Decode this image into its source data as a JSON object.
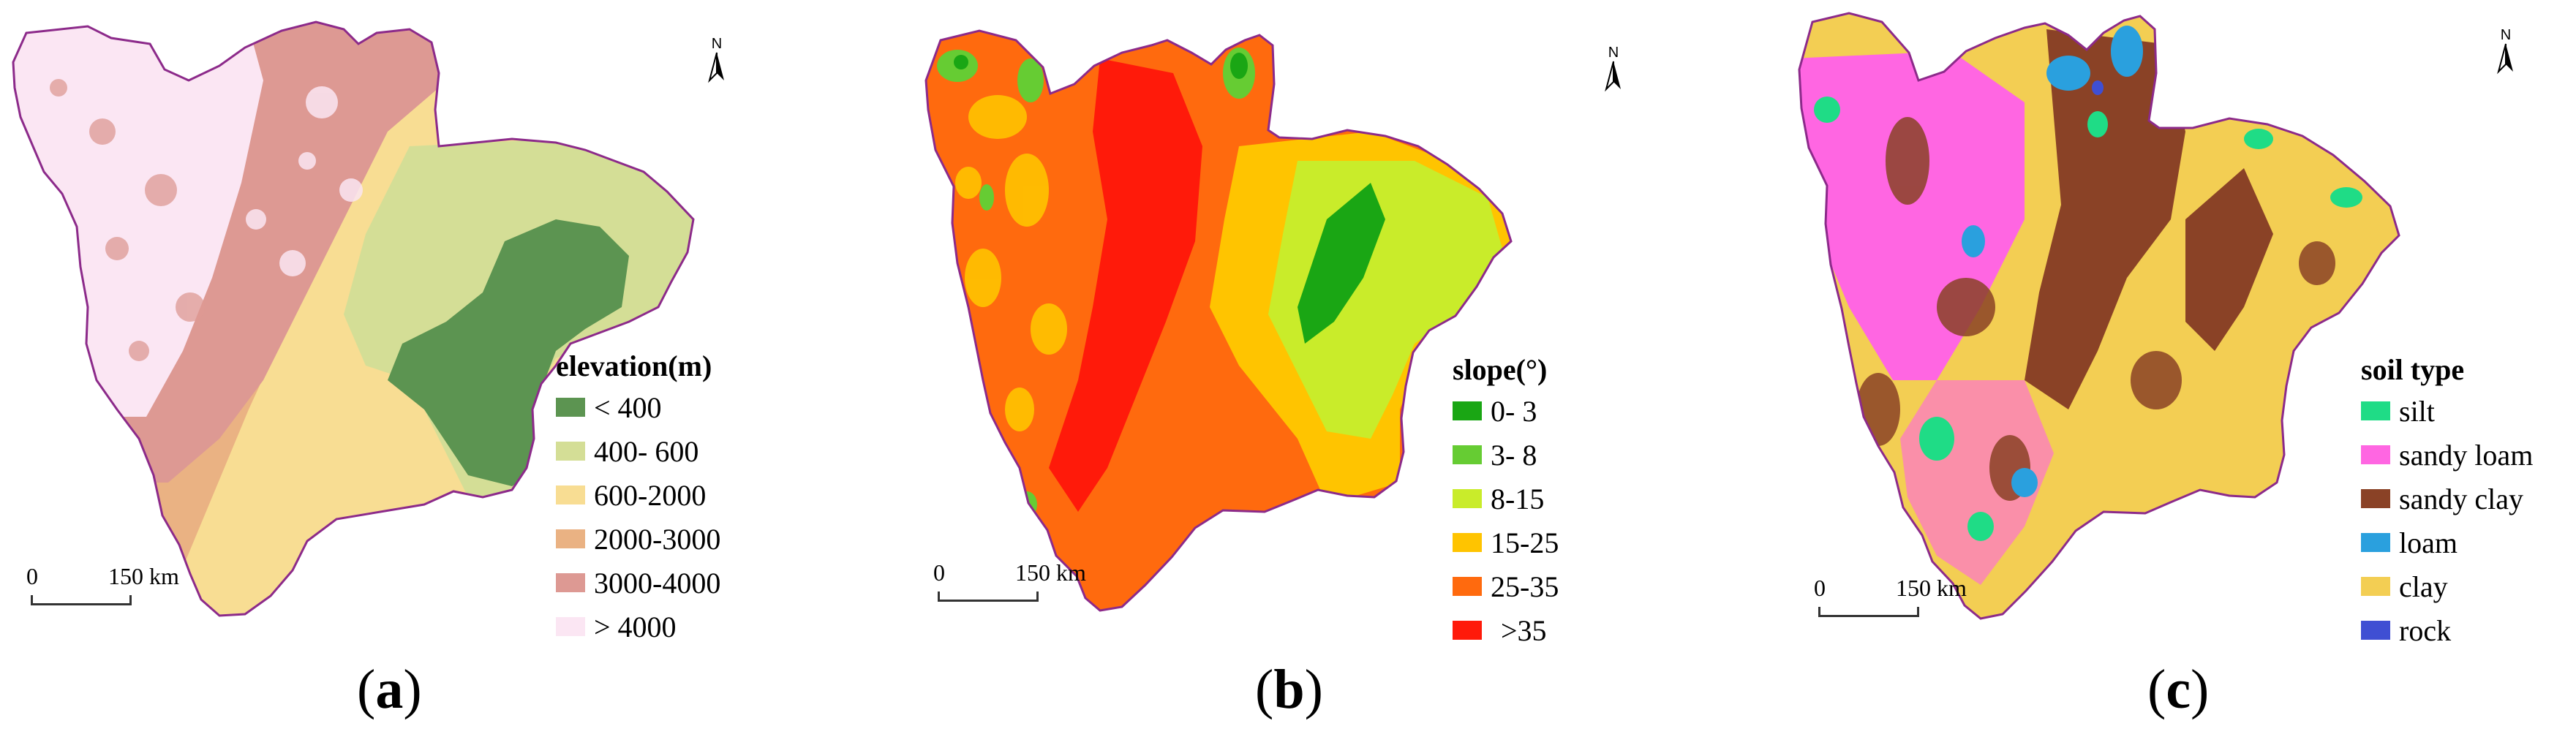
{
  "panels": [
    {
      "caption_open": "(",
      "caption_letter": "a",
      "caption_close": ")",
      "legend_title": "elevation(m)",
      "classes": [
        {
          "label": "< 400",
          "color": "#5c9451"
        },
        {
          "label": "400- 600",
          "color": "#d4de96"
        },
        {
          "label": "600-2000",
          "color": "#f8dd93"
        },
        {
          "label": "2000-3000",
          "color": "#eab283"
        },
        {
          "label": "3000-4000",
          "color": "#dd9993"
        },
        {
          "label": "> 4000",
          "color": "#fbe6f3"
        }
      ],
      "scale_zero": "0",
      "scale_distance": "150 km",
      "north_label": "N"
    },
    {
      "caption_open": "(",
      "caption_letter": "b",
      "caption_close": ")",
      "legend_title": "slope(°)",
      "classes": [
        {
          "label": "0- 3",
          "color": "#1aa614"
        },
        {
          "label": "3- 8",
          "color": "#66cc33"
        },
        {
          "label": "8-15",
          "color": "#c9ec2a"
        },
        {
          "label": "15-25",
          "color": "#ffc400"
        },
        {
          "label": "25-35",
          "color": "#ff6a0e"
        },
        {
          "label": ">35",
          "color": "#ff1a0a"
        }
      ],
      "scale_zero": "0",
      "scale_distance": "150 km",
      "north_label": "N"
    },
    {
      "caption_open": "(",
      "caption_letter": "c",
      "caption_close": ")",
      "legend_title": "soil type",
      "classes": [
        {
          "label": "silt",
          "color": "#1fdc86"
        },
        {
          "label": "sandy loam",
          "color": "#ff66e2"
        },
        {
          "label": "sandy clay",
          "color": "#8a4226"
        },
        {
          "label": "loam",
          "color": "#2aa0de"
        },
        {
          "label": "clay",
          "color": "#f3ce53"
        },
        {
          "label": "rock",
          "color": "#3f4fd3"
        }
      ],
      "scale_zero": "0",
      "scale_distance": "150 km",
      "north_label": "N"
    }
  ]
}
